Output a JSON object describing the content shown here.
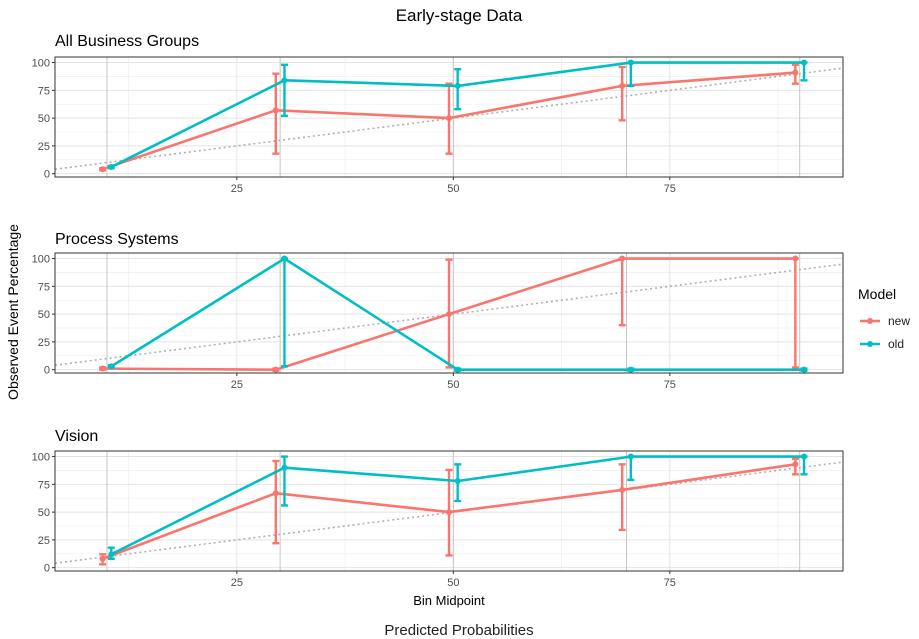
{
  "figure": {
    "title": "Early-stage Data",
    "caption": "Predicted Probabilities"
  },
  "legend": {
    "title": "Model",
    "items": [
      {
        "label": "new",
        "color": "#F8766D"
      },
      {
        "label": "old",
        "color": "#00BFC4"
      }
    ]
  },
  "chart_data": [
    {
      "type": "line",
      "title": "All Business Groups",
      "xlabel": "",
      "ylabel": "Observed Event Percentage",
      "xlim": [
        4,
        95
      ],
      "ylim": [
        -3,
        105
      ],
      "xticks": [
        25,
        50,
        75
      ],
      "yticks": [
        0,
        25,
        50,
        75,
        100
      ],
      "grid": true,
      "reference_line": {
        "style": "dotted",
        "slope": 1,
        "intercept": 0
      },
      "series": [
        {
          "name": "new",
          "color": "#F8766D",
          "x": [
            9.5,
            29.5,
            49.5,
            69.5,
            89.5
          ],
          "y": [
            4,
            57,
            50,
            79,
            91
          ],
          "lo": [
            4,
            18,
            18,
            48,
            81
          ],
          "hi": [
            4,
            90,
            81,
            96,
            98
          ]
        },
        {
          "name": "old",
          "color": "#00BFC4",
          "x": [
            10.5,
            30.5,
            50.5,
            70.5,
            90.5
          ],
          "y": [
            6,
            84,
            79,
            100,
            100
          ],
          "lo": [
            6,
            52,
            58,
            79,
            84
          ],
          "hi": [
            6,
            98,
            94,
            100,
            100
          ]
        }
      ]
    },
    {
      "type": "line",
      "title": "Process Systems",
      "xlabel": "",
      "ylabel": "Observed Event Percentage",
      "xlim": [
        4,
        95
      ],
      "ylim": [
        -3,
        105
      ],
      "xticks": [
        25,
        50,
        75
      ],
      "yticks": [
        0,
        25,
        50,
        75,
        100
      ],
      "grid": true,
      "reference_line": {
        "style": "dotted",
        "slope": 1,
        "intercept": 0
      },
      "series": [
        {
          "name": "new",
          "color": "#F8766D",
          "x": [
            9.5,
            29.5,
            49.5,
            69.5,
            89.5
          ],
          "y": [
            1,
            0,
            50,
            100,
            100
          ],
          "lo": [
            1,
            0,
            2,
            40,
            2
          ],
          "hi": [
            1,
            0,
            99,
            100,
            100
          ]
        },
        {
          "name": "old",
          "color": "#00BFC4",
          "x": [
            10.5,
            30.5,
            50.5,
            70.5,
            90.5
          ],
          "y": [
            3,
            100,
            0,
            0,
            0
          ],
          "lo": [
            3,
            3,
            0,
            0,
            0
          ],
          "hi": [
            3,
            100,
            0,
            0,
            0
          ]
        }
      ]
    },
    {
      "type": "line",
      "title": "Vision",
      "xlabel": "Bin Midpoint",
      "ylabel": "Observed Event Percentage",
      "xlim": [
        4,
        95
      ],
      "ylim": [
        -3,
        105
      ],
      "xticks": [
        25,
        50,
        75
      ],
      "yticks": [
        0,
        25,
        50,
        75,
        100
      ],
      "grid": true,
      "reference_line": {
        "style": "dotted",
        "slope": 1,
        "intercept": 0
      },
      "series": [
        {
          "name": "new",
          "color": "#F8766D",
          "x": [
            9.5,
            29.5,
            49.5,
            69.5,
            89.5
          ],
          "y": [
            8,
            67,
            50,
            70,
            93
          ],
          "lo": [
            3,
            22,
            11,
            34,
            84
          ],
          "hi": [
            12,
            96,
            88,
            93,
            98
          ]
        },
        {
          "name": "old",
          "color": "#00BFC4",
          "x": [
            10.5,
            30.5,
            50.5,
            70.5,
            90.5
          ],
          "y": [
            12,
            90,
            78,
            100,
            100
          ],
          "lo": [
            8,
            56,
            60,
            79,
            84
          ],
          "hi": [
            18,
            100,
            93,
            100,
            100
          ]
        }
      ]
    }
  ]
}
